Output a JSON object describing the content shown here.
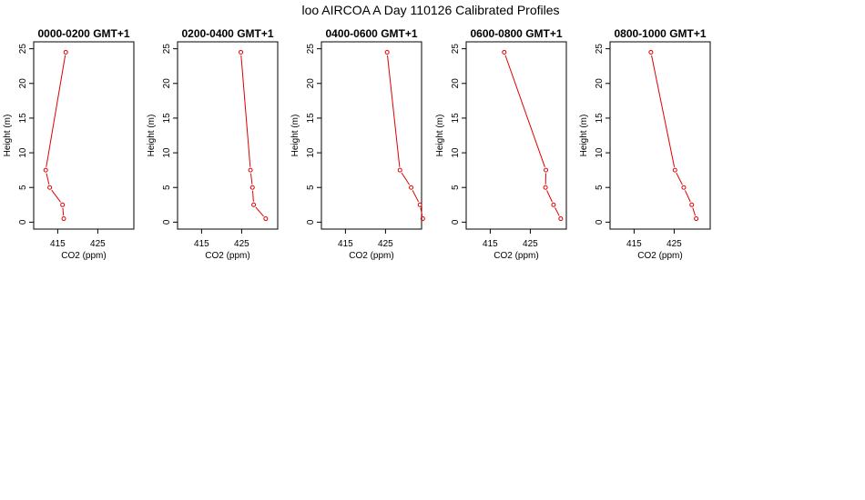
{
  "figure": {
    "title": "loo AIRCOA A  Day 110126  Calibrated Profiles"
  },
  "colors": {
    "series": "#e00000",
    "axis": "#000000",
    "background": "#ffffff"
  },
  "chart_data": [
    {
      "type": "line",
      "title": "0000-0200 GMT+1",
      "xlabel": "CO2 (ppm)",
      "ylabel": "Height (m)",
      "xlim": [
        409,
        434
      ],
      "ylim": [
        -1,
        26
      ],
      "xticks": [
        415,
        425
      ],
      "yticks": [
        0,
        5,
        10,
        15,
        20,
        25
      ],
      "grid": false,
      "series": [
        {
          "x": [
            416.5,
            416.2,
            413.0,
            412.0,
            417.0
          ],
          "y": [
            0.5,
            2.5,
            5.0,
            7.5,
            24.5
          ]
        }
      ]
    },
    {
      "type": "line",
      "title": "0200-0400 GMT+1",
      "xlabel": "CO2 (ppm)",
      "ylabel": "Height (m)",
      "xlim": [
        409,
        434
      ],
      "ylim": [
        -1,
        26
      ],
      "xticks": [
        415,
        425
      ],
      "yticks": [
        0,
        5,
        10,
        15,
        20,
        25
      ],
      "grid": false,
      "series": [
        {
          "x": [
            431.0,
            428.0,
            427.7,
            427.2,
            424.8
          ],
          "y": [
            0.5,
            2.5,
            5.0,
            7.5,
            24.5
          ]
        }
      ]
    },
    {
      "type": "line",
      "title": "0400-0600 GMT+1",
      "xlabel": "CO2 (ppm)",
      "ylabel": "Height (m)",
      "xlim": [
        409,
        434
      ],
      "ylim": [
        -1,
        26
      ],
      "xticks": [
        415,
        425
      ],
      "yticks": [
        0,
        5,
        10,
        15,
        20,
        25
      ],
      "grid": false,
      "series": [
        {
          "x": [
            434.3,
            433.6,
            431.4,
            428.6,
            425.4
          ],
          "y": [
            0.5,
            2.5,
            5.0,
            7.5,
            24.5
          ]
        }
      ]
    },
    {
      "type": "line",
      "title": "0600-0800 GMT+1",
      "xlabel": "CO2 (ppm)",
      "ylabel": "Height (m)",
      "xlim": [
        409,
        434
      ],
      "ylim": [
        -1,
        26
      ],
      "xticks": [
        415,
        425
      ],
      "yticks": [
        0,
        5,
        10,
        15,
        20,
        25
      ],
      "grid": false,
      "series": [
        {
          "x": [
            432.6,
            430.8,
            428.8,
            428.9,
            418.5
          ],
          "y": [
            0.5,
            2.5,
            5.0,
            7.5,
            24.5
          ]
        }
      ]
    },
    {
      "type": "line",
      "title": "0800-1000 GMT+1",
      "xlabel": "CO2 (ppm)",
      "ylabel": "Height (m)",
      "xlim": [
        409,
        434
      ],
      "ylim": [
        -1,
        26
      ],
      "xticks": [
        415,
        425
      ],
      "yticks": [
        0,
        5,
        10,
        15,
        20,
        25
      ],
      "grid": false,
      "series": [
        {
          "x": [
            430.5,
            429.4,
            427.4,
            425.2,
            419.2
          ],
          "y": [
            0.5,
            2.5,
            5.0,
            7.5,
            24.5
          ]
        }
      ]
    }
  ]
}
